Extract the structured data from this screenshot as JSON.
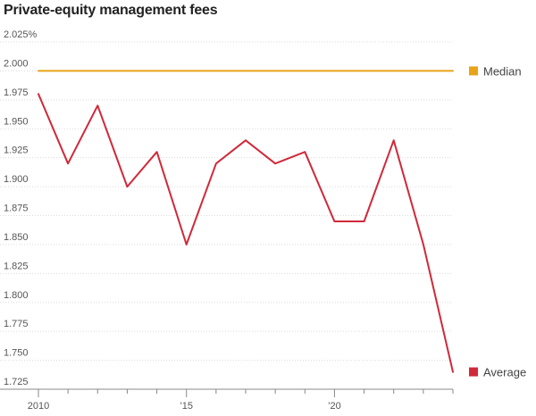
{
  "chart_data": {
    "type": "line",
    "title": "Private-equity management fees",
    "x_ticks": [
      {
        "value": 2010,
        "label": "2010"
      },
      {
        "value": 2015,
        "label": "’15"
      },
      {
        "value": 2020,
        "label": "’20"
      }
    ],
    "x_minor_ticks": [
      2011,
      2012,
      2013,
      2014,
      2016,
      2017,
      2018,
      2019,
      2021,
      2022,
      2023,
      2024
    ],
    "xlim": [
      2010,
      2024
    ],
    "ylim": [
      1.725,
      2.025
    ],
    "y_ticks": [
      {
        "value": 2.025,
        "label": "2.025%"
      },
      {
        "value": 2.0,
        "label": "2.000"
      },
      {
        "value": 1.975,
        "label": "1.975"
      },
      {
        "value": 1.95,
        "label": "1.950"
      },
      {
        "value": 1.925,
        "label": "1.925"
      },
      {
        "value": 1.9,
        "label": "1.900"
      },
      {
        "value": 1.875,
        "label": "1.875"
      },
      {
        "value": 1.85,
        "label": "1.850"
      },
      {
        "value": 1.825,
        "label": "1.825"
      },
      {
        "value": 1.8,
        "label": "1.800"
      },
      {
        "value": 1.775,
        "label": "1.775"
      },
      {
        "value": 1.75,
        "label": "1.750"
      },
      {
        "value": 1.725,
        "label": "1.725"
      }
    ],
    "grid": "horizontal",
    "legend": "right, at line ends",
    "series": [
      {
        "name": "Median",
        "color": "#e8a317",
        "x": [
          2010,
          2011,
          2012,
          2013,
          2014,
          2015,
          2016,
          2017,
          2018,
          2019,
          2020,
          2021,
          2022,
          2023,
          2024
        ],
        "values": [
          2.0,
          2.0,
          2.0,
          2.0,
          2.0,
          2.0,
          2.0,
          2.0,
          2.0,
          2.0,
          2.0,
          2.0,
          2.0,
          2.0,
          2.0
        ]
      },
      {
        "name": "Average",
        "color": "#d0293a",
        "x": [
          2010,
          2011,
          2012,
          2013,
          2014,
          2015,
          2016,
          2017,
          2018,
          2019,
          2020,
          2021,
          2022,
          2023,
          2024
        ],
        "values": [
          1.98,
          1.92,
          1.97,
          1.9,
          1.93,
          1.85,
          1.92,
          1.94,
          1.92,
          1.93,
          1.87,
          1.87,
          1.94,
          1.85,
          1.74
        ]
      }
    ]
  }
}
